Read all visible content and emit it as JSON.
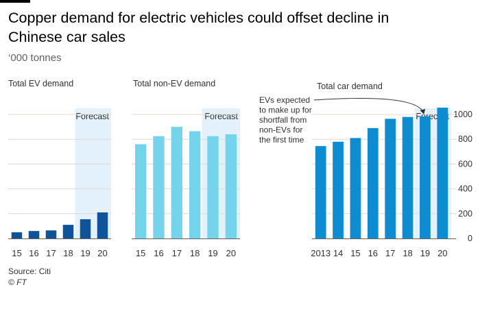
{
  "title": "Copper demand for electric vehicles could offset decline in Chinese car sales",
  "subtitle": "‘000 tonnes",
  "source": "Source: Citi",
  "copyright": "© FT",
  "colors": {
    "ev_bar": "#0f5499",
    "non_ev_bar": "#74d4ec",
    "total_bar": "#0d8cd1",
    "forecast_band": "#e2f1fb",
    "grid": "#e8d5cc",
    "axis": "#66605c"
  },
  "chart_data": [
    {
      "type": "bar",
      "panel": "ev",
      "title": "Total EV demand",
      "categories": [
        "15",
        "16",
        "17",
        "18",
        "19",
        "20"
      ],
      "values": [
        50,
        60,
        65,
        110,
        155,
        210
      ],
      "ylim": [
        0,
        1050
      ],
      "forecast_from": "19",
      "forecast_label": "Forecast",
      "grid": true
    },
    {
      "type": "bar",
      "panel": "non_ev",
      "title": "Total non-EV demand",
      "categories": [
        "15",
        "16",
        "17",
        "18",
        "19",
        "20"
      ],
      "values": [
        760,
        825,
        900,
        865,
        825,
        840
      ],
      "ylim": [
        0,
        1050
      ],
      "forecast_from": "19",
      "forecast_label": "Forecast",
      "grid": true
    },
    {
      "type": "bar",
      "panel": "total",
      "title": "Total car demand",
      "categories": [
        "2013",
        "14",
        "15",
        "16",
        "17",
        "18",
        "19",
        "20"
      ],
      "values": [
        745,
        780,
        810,
        890,
        965,
        980,
        985,
        1055
      ],
      "ylim": [
        0,
        1050
      ],
      "yticks": [
        0,
        200,
        400,
        600,
        800,
        1000
      ],
      "forecast_from": "19",
      "forecast_label": "Forecast",
      "grid": true,
      "annotation": {
        "lines": [
          "EVs expected",
          "to make up for",
          "shortfall from",
          "non-EVs for",
          "the first time"
        ],
        "target_category": "19"
      }
    }
  ]
}
